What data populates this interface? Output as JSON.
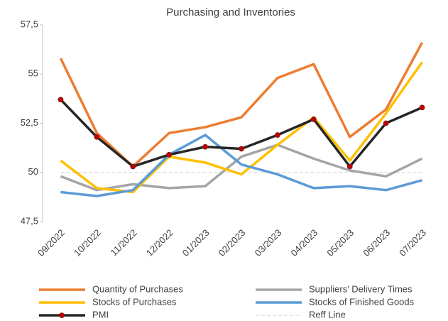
{
  "chart_data": {
    "type": "line",
    "title": "Purchasing and Inventories",
    "categories": [
      "09/2022",
      "10/2022",
      "11/2022",
      "12/2022",
      "01/2023",
      "02/2023",
      "03/2023",
      "04/2023",
      "05/2023",
      "06/2023",
      "07/2023"
    ],
    "series": [
      {
        "name": "Quantity of Purchases",
        "color": "#ed7d31",
        "values": [
          55.8,
          52.0,
          50.3,
          52.0,
          52.3,
          52.8,
          54.8,
          55.5,
          51.8,
          53.2,
          56.6
        ]
      },
      {
        "name": "Suppliers' Delivery Times",
        "color": "#a5a5a5",
        "values": [
          49.8,
          49.1,
          49.4,
          49.2,
          49.3,
          50.8,
          51.4,
          50.7,
          50.1,
          49.8,
          50.7
        ]
      },
      {
        "name": "Stocks of Purchases",
        "color": "#ffc000",
        "values": [
          50.6,
          49.2,
          49.0,
          50.8,
          50.5,
          49.9,
          51.4,
          52.8,
          50.6,
          53.0,
          55.6
        ]
      },
      {
        "name": "Stocks of Finished Goods",
        "color": "#5b9bd5",
        "values": [
          49.0,
          48.8,
          49.1,
          50.9,
          51.9,
          50.4,
          49.9,
          49.2,
          49.3,
          49.1,
          49.6
        ]
      },
      {
        "name": "PMI",
        "color": "#262626",
        "marker_color": "#c00000",
        "values": [
          53.7,
          51.8,
          50.3,
          50.9,
          51.3,
          51.2,
          51.9,
          52.7,
          50.3,
          52.5,
          53.3
        ]
      },
      {
        "name": "Reff Line",
        "color": "#d9d9d9",
        "dashed": true,
        "values": [
          50,
          50,
          50,
          50,
          50,
          50,
          50,
          50,
          50,
          50,
          50
        ]
      }
    ],
    "ylim": [
      47.5,
      57.5
    ],
    "yticks": [
      {
        "value": 47.5,
        "label": "47,5"
      },
      50,
      {
        "value": 52.5,
        "label": "52,5"
      },
      55,
      {
        "value": 57.5,
        "label": "57,5"
      }
    ],
    "grid": false,
    "legend": "bottom"
  }
}
